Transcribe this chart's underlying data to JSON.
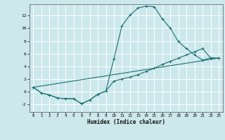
{
  "xlabel": "Humidex (Indice chaleur)",
  "bg_color": "#cce8ed",
  "grid_color": "#ffffff",
  "line_color": "#1a7070",
  "xlim": [
    -0.5,
    23.5
  ],
  "ylim": [
    -3.2,
    13.8
  ],
  "xticks": [
    0,
    1,
    2,
    3,
    4,
    5,
    6,
    7,
    8,
    9,
    10,
    11,
    12,
    13,
    14,
    15,
    16,
    17,
    18,
    19,
    20,
    21,
    22,
    23
  ],
  "yticks": [
    -2,
    0,
    2,
    4,
    6,
    8,
    10,
    12
  ],
  "line1_x": [
    0,
    1,
    2,
    3,
    4,
    5,
    6,
    7,
    8,
    9,
    10,
    11,
    12,
    13,
    14,
    15,
    16,
    17,
    18,
    19,
    20,
    21,
    22,
    23
  ],
  "line1_y": [
    0.7,
    -0.2,
    -0.5,
    -1.0,
    -1.1,
    -1.1,
    -1.9,
    -1.3,
    -0.4,
    0.1,
    5.2,
    10.4,
    12.1,
    13.2,
    13.5,
    13.4,
    11.5,
    10.0,
    7.9,
    6.8,
    5.8,
    5.0,
    5.3,
    5.3
  ],
  "line2_x": [
    0,
    1,
    2,
    3,
    4,
    5,
    6,
    7,
    8,
    9,
    10,
    11,
    12,
    13,
    14,
    15,
    16,
    17,
    18,
    19,
    20,
    21,
    22,
    23
  ],
  "line2_y": [
    0.7,
    -0.2,
    -0.5,
    -1.0,
    -1.1,
    -1.1,
    -1.9,
    -1.3,
    -0.4,
    0.1,
    1.7,
    2.0,
    2.3,
    2.7,
    3.2,
    3.7,
    4.3,
    4.8,
    5.3,
    5.8,
    6.3,
    6.8,
    5.3,
    5.3
  ],
  "line3_x": [
    0,
    23
  ],
  "line3_y": [
    0.7,
    5.3
  ]
}
